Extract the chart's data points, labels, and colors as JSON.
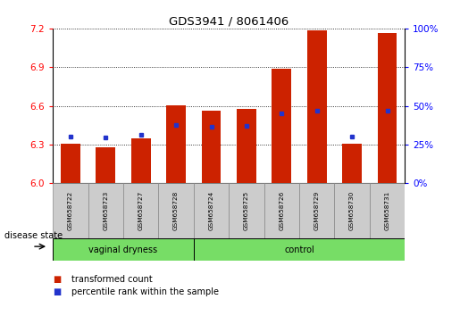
{
  "title": "GDS3941 / 8061406",
  "samples": [
    "GSM658722",
    "GSM658723",
    "GSM658727",
    "GSM658728",
    "GSM658724",
    "GSM658725",
    "GSM658726",
    "GSM658729",
    "GSM658730",
    "GSM658731"
  ],
  "red_bar_top": [
    6.305,
    6.282,
    6.345,
    6.605,
    6.565,
    6.575,
    6.885,
    7.185,
    6.305,
    7.165
  ],
  "blue_marker_y": [
    6.365,
    6.355,
    6.375,
    6.455,
    6.435,
    6.445,
    6.545,
    6.565,
    6.365,
    6.565
  ],
  "ylim_left": [
    6.0,
    7.2
  ],
  "ylim_right": [
    0,
    100
  ],
  "yticks_left": [
    6.0,
    6.3,
    6.6,
    6.9,
    7.2
  ],
  "yticks_right": [
    0,
    25,
    50,
    75,
    100
  ],
  "bar_bottom": 6.0,
  "bar_color": "#cc2200",
  "blue_color": "#2233cc",
  "bar_width": 0.55,
  "green_color": "#77dd66",
  "label_red": "transformed count",
  "label_blue": "percentile rank within the sample",
  "disease_state_label": "disease state",
  "group_labels": [
    "vaginal dryness",
    "control"
  ],
  "n_vd": 4,
  "n_ctrl": 6
}
